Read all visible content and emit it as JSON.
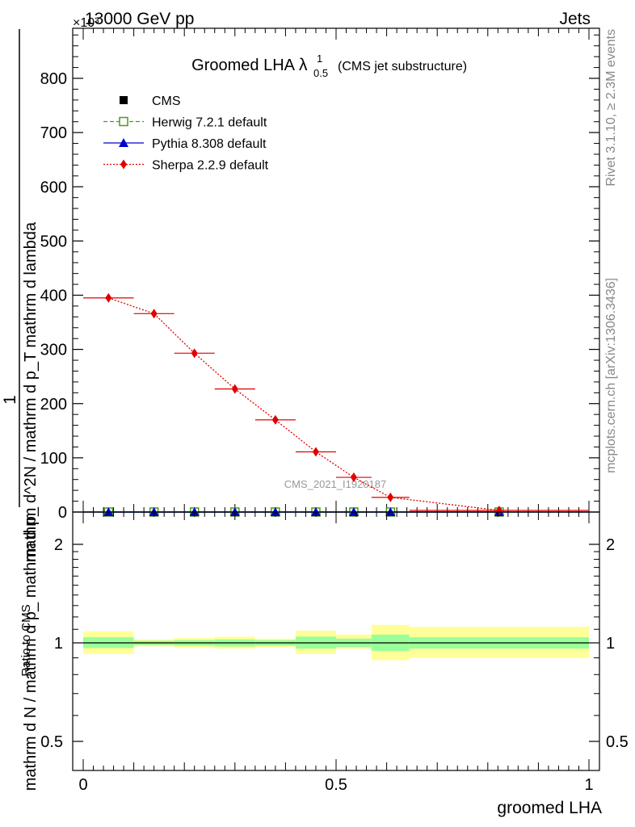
{
  "header": {
    "left": "13000 GeV pp",
    "right": "Jets",
    "exponent": "×10³"
  },
  "side_labels": {
    "top": "Rivet 3.1.10, ≥ 2.3M events",
    "bottom": "mcplots.cern.ch [arXiv:1306.3436]"
  },
  "chart_data": [
    {
      "type": "line",
      "title_main": "Groomed LHA",
      "title_symbol": "λ",
      "title_sup": "1",
      "title_sub": "0.5",
      "title_note": "(CMS jet substructure)",
      "watermark": "CMS_2021_I1920187",
      "ylabel_numerator": "1",
      "ylabel_denominator": "mathrm d N / mathrm d p_ mathrm d p_",
      "ylabel_right": "mathrm d^2N / mathrm d p_T mathrm d lambda",
      "xlim": [
        0,
        1
      ],
      "ylim": [
        0,
        900
      ],
      "y_scale_factor": 1000,
      "yticks": [
        0,
        100,
        200,
        300,
        400,
        500,
        600,
        700,
        800
      ],
      "legend_position": "top-left",
      "legend": [
        {
          "name": "CMS",
          "color": "#000000",
          "marker": "square",
          "line": "none"
        },
        {
          "name": "Herwig 7.2.1 default",
          "color": "#4c9a1a",
          "marker": "open-square",
          "line": "dashed"
        },
        {
          "name": "Pythia 8.308 default",
          "color": "#0000cc",
          "marker": "triangle",
          "line": "solid"
        },
        {
          "name": "Sherpa 2.2.9 default",
          "color": "#e00000",
          "marker": "diamond",
          "line": "dotted"
        }
      ],
      "bins": [
        {
          "lo": 0.0,
          "hi": 0.1,
          "x": 0.05
        },
        {
          "lo": 0.1,
          "hi": 0.18,
          "x": 0.14
        },
        {
          "lo": 0.18,
          "hi": 0.26,
          "x": 0.22
        },
        {
          "lo": 0.26,
          "hi": 0.34,
          "x": 0.3
        },
        {
          "lo": 0.34,
          "hi": 0.42,
          "x": 0.38
        },
        {
          "lo": 0.42,
          "hi": 0.5,
          "x": 0.46
        },
        {
          "lo": 0.5,
          "hi": 0.57,
          "x": 0.535
        },
        {
          "lo": 0.57,
          "hi": 0.645,
          "x": 0.6075
        },
        {
          "lo": 0.645,
          "hi": 1.0,
          "x": 0.8225
        }
      ],
      "series": [
        {
          "name": "CMS",
          "values": [
            0,
            0,
            0,
            0,
            0,
            0,
            0,
            0,
            0
          ]
        },
        {
          "name": "Herwig 7.2.1 default",
          "values": [
            0,
            0,
            0,
            0,
            0,
            0,
            0,
            0,
            0
          ]
        },
        {
          "name": "Pythia 8.308 default",
          "values": [
            0,
            0,
            0,
            0,
            0,
            0,
            0,
            0,
            0
          ]
        },
        {
          "name": "Sherpa 2.2.9 default",
          "values": [
            395,
            366,
            293,
            227,
            170,
            111,
            64,
            27,
            3
          ]
        }
      ]
    },
    {
      "type": "area",
      "ylabel": "Ratio to CMS",
      "xlabel": "groomed LHA",
      "xlim": [
        0,
        1
      ],
      "ylim": [
        0.4,
        2.4
      ],
      "y_scale": "log",
      "yticks": [
        0.5,
        1,
        2
      ],
      "xticks": [
        0,
        0.5,
        1
      ],
      "band_stat_color": "#99ff99",
      "band_total_color": "#ffff99",
      "stat_band": [
        [
          0.965,
          1.04
        ],
        [
          0.985,
          1.015
        ],
        [
          0.98,
          1.02
        ],
        [
          0.975,
          1.025
        ],
        [
          0.98,
          1.02
        ],
        [
          0.96,
          1.045
        ],
        [
          0.97,
          1.03
        ],
        [
          0.945,
          1.06
        ],
        [
          0.96,
          1.04
        ]
      ],
      "total_band": [
        [
          0.925,
          1.085
        ],
        [
          0.975,
          1.025
        ],
        [
          0.965,
          1.035
        ],
        [
          0.96,
          1.045
        ],
        [
          0.97,
          1.03
        ],
        [
          0.925,
          1.09
        ],
        [
          0.96,
          1.06
        ],
        [
          0.885,
          1.135
        ],
        [
          0.9,
          1.12
        ]
      ]
    }
  ]
}
